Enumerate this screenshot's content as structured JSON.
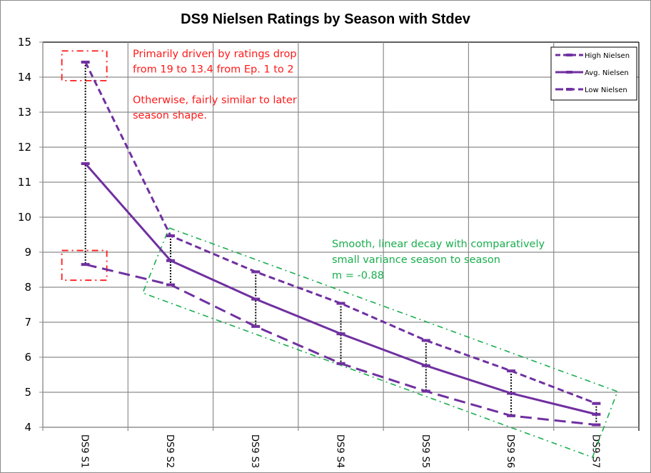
{
  "chart_data": {
    "type": "line",
    "title": "DS9 Nielsen Ratings by Season with Stdev",
    "xlabel": "",
    "ylabel": "",
    "categories": [
      "DS9 S1",
      "DS9 S2",
      "DS9 S3",
      "DS9 S4",
      "DS9 S5",
      "DS9 S6",
      "DS9 S7"
    ],
    "ylim": [
      4,
      15
    ],
    "yticks": [
      4,
      5,
      6,
      7,
      8,
      9,
      10,
      11,
      12,
      13,
      14,
      15
    ],
    "grid": true,
    "legend_position": "top-right",
    "series": [
      {
        "name": "High Nielsen",
        "style": "short-dash",
        "color": "#7030a0",
        "values": [
          14.43,
          9.47,
          8.44,
          7.54,
          6.48,
          5.61,
          4.68
        ]
      },
      {
        "name": "Avg. Nielsen",
        "style": "solid",
        "color": "#7030a0",
        "values": [
          11.53,
          8.76,
          7.66,
          6.67,
          5.76,
          4.97,
          4.37
        ]
      },
      {
        "name": "Low Nielsen",
        "style": "long-dash",
        "color": "#7030a0",
        "values": [
          8.65,
          8.07,
          6.88,
          5.82,
          5.03,
          4.33,
          4.07
        ]
      }
    ],
    "annotations": [
      {
        "id": "red-note",
        "color": "#ff1a1a",
        "lines": [
          "Primarily driven by ratings drop",
          "from 19 to 13.4 from Ep. 1 to 2",
          "",
          "Otherwise, fairly similar to later",
          "season shape."
        ]
      },
      {
        "id": "green-note",
        "color": "#1aae4e",
        "lines": [
          "Smooth, linear decay with comparatively",
          "small variance season to season",
          "m = -0.88"
        ]
      }
    ],
    "highlight_boxes": [
      {
        "color": "#ff1a1a",
        "style": "dash-dot",
        "category": "DS9 S1",
        "y_range": [
          13.9,
          14.75
        ]
      },
      {
        "color": "#ff1a1a",
        "style": "dash-dot",
        "category": "DS9 S1",
        "y_range": [
          8.2,
          9.05
        ]
      },
      {
        "color": "#1aae4e",
        "style": "dash-dot",
        "shape": "rotated-rectangle",
        "covers": [
          "DS9 S2",
          "DS9 S7"
        ]
      }
    ],
    "error_bars": {
      "style": "dotted",
      "color": "#000000",
      "from": "Low Nielsen",
      "to": "High Nielsen"
    }
  }
}
